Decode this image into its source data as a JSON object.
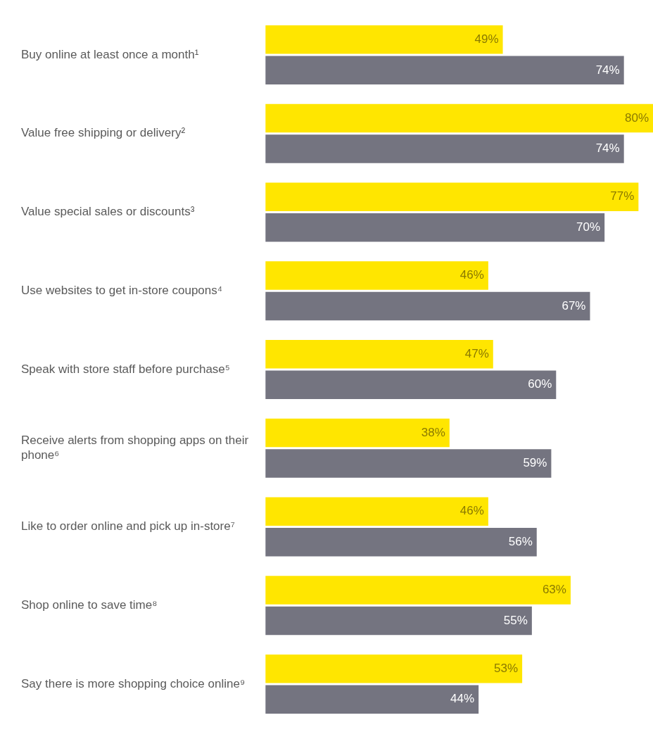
{
  "chart_data": {
    "type": "bar",
    "orientation": "horizontal",
    "legend": false,
    "grid": false,
    "tick_labels": "y",
    "categories": [
      "Buy online at least once a month¹",
      "Value free shipping or delivery²",
      "Value special sales or discounts³",
      "Use websites to get in-store coupons⁴",
      "Speak with store staff before purchase⁵",
      "Receive alerts from shopping apps on their phone⁶",
      "Like to order online and pick up in-store⁷",
      "Shop online to save time⁸",
      "Say there is more shopping choice online⁹"
    ],
    "series": [
      {
        "color": "#ffe600",
        "values": [
          49,
          80,
          77,
          46,
          47,
          38,
          46,
          63,
          53
        ],
        "value_labels": [
          "49%",
          "80%",
          "77%",
          "46%",
          "47%",
          "38%",
          "46%",
          "63%",
          "53%"
        ]
      },
      {
        "color": "#747480",
        "values": [
          74,
          74,
          70,
          67,
          60,
          59,
          56,
          55,
          44
        ],
        "value_labels": [
          "74%",
          "74%",
          "70%",
          "67%",
          "60%",
          "59%",
          "56%",
          "55%",
          "44%"
        ]
      }
    ]
  }
}
